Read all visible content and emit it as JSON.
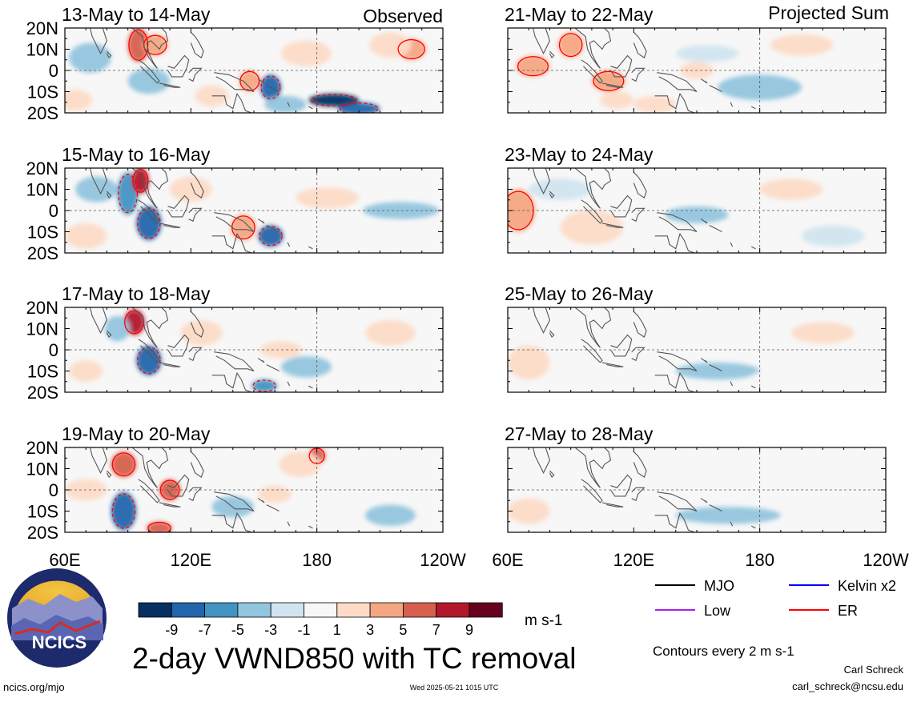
{
  "columns": {
    "left_label": "Observed",
    "right_label": "Projected Sum"
  },
  "chart_data": {
    "type": "heatmap",
    "variable": "2-day VWND850 with TC removal",
    "units": "m s-1",
    "lat_ticks": [
      "20N",
      "10N",
      "0",
      "10S",
      "20S"
    ],
    "lon_ticks": [
      "60E",
      "120E",
      "180",
      "120W"
    ],
    "panels": [
      {
        "label": "13-May to 14-May",
        "column": "Observed",
        "blobs": [
          {
            "lon": 72,
            "lat": 6,
            "value": -4,
            "rx": 10,
            "ry": 7
          },
          {
            "lon": 95,
            "lat": 12,
            "value": 7,
            "rx": 5,
            "ry": 8
          },
          {
            "lon": 103,
            "lat": 12,
            "value": 5,
            "rx": 6,
            "ry": 5
          },
          {
            "lon": 100,
            "lat": -5,
            "value": -3,
            "rx": 10,
            "ry": 6
          },
          {
            "lon": 148,
            "lat": -5,
            "value": 5,
            "rx": 5,
            "ry": 5
          },
          {
            "lon": 158,
            "lat": -8,
            "value": -7,
            "rx": 5,
            "ry": 6
          },
          {
            "lon": 188,
            "lat": -14,
            "value": -9,
            "rx": 12,
            "ry": 3
          },
          {
            "lon": 200,
            "lat": -18,
            "value": -7,
            "rx": 10,
            "ry": 3
          },
          {
            "lon": 225,
            "lat": 10,
            "value": 5,
            "rx": 7,
            "ry": 5
          },
          {
            "lon": 215,
            "lat": 12,
            "value": 3,
            "rx": 10,
            "ry": 6
          },
          {
            "lon": 130,
            "lat": -12,
            "value": 3,
            "rx": 8,
            "ry": 5
          },
          {
            "lon": 175,
            "lat": 8,
            "value": 3,
            "rx": 12,
            "ry": 6
          },
          {
            "lon": 165,
            "lat": -16,
            "value": -3,
            "rx": 10,
            "ry": 4
          },
          {
            "lon": 65,
            "lat": -14,
            "value": 3,
            "rx": 8,
            "ry": 5
          }
        ]
      },
      {
        "label": "15-May to 16-May",
        "column": "Observed",
        "blobs": [
          {
            "lon": 90,
            "lat": 8,
            "value": -5,
            "rx": 5,
            "ry": 10
          },
          {
            "lon": 96,
            "lat": 14,
            "value": 9,
            "rx": 4,
            "ry": 6
          },
          {
            "lon": 100,
            "lat": -6,
            "value": -7,
            "rx": 6,
            "ry": 8
          },
          {
            "lon": 75,
            "lat": 10,
            "value": -3,
            "rx": 10,
            "ry": 6
          },
          {
            "lon": 145,
            "lat": -8,
            "value": 5,
            "rx": 6,
            "ry": 6
          },
          {
            "lon": 158,
            "lat": -12,
            "value": -7,
            "rx": 6,
            "ry": 5
          },
          {
            "lon": 220,
            "lat": 0,
            "value": -3,
            "rx": 18,
            "ry": 4
          },
          {
            "lon": 120,
            "lat": 10,
            "value": 3,
            "rx": 10,
            "ry": 6
          },
          {
            "lon": 70,
            "lat": -12,
            "value": 3,
            "rx": 10,
            "ry": 6
          },
          {
            "lon": 185,
            "lat": 6,
            "value": 3,
            "rx": 15,
            "ry": 5
          }
        ]
      },
      {
        "label": "17-May to 18-May",
        "column": "Observed",
        "blobs": [
          {
            "lon": 93,
            "lat": 13,
            "value": 9,
            "rx": 5,
            "ry": 6
          },
          {
            "lon": 100,
            "lat": -5,
            "value": -7,
            "rx": 6,
            "ry": 7
          },
          {
            "lon": 85,
            "lat": 10,
            "value": -3,
            "rx": 6,
            "ry": 6
          },
          {
            "lon": 163,
            "lat": 0,
            "value": 3,
            "rx": 10,
            "ry": 4
          },
          {
            "lon": 175,
            "lat": -8,
            "value": -3,
            "rx": 12,
            "ry": 5
          },
          {
            "lon": 155,
            "lat": -17,
            "value": -5,
            "rx": 6,
            "ry": 3
          },
          {
            "lon": 215,
            "lat": 8,
            "value": 3,
            "rx": 12,
            "ry": 6
          },
          {
            "lon": 125,
            "lat": 8,
            "value": 3,
            "rx": 10,
            "ry": 6
          },
          {
            "lon": 70,
            "lat": -10,
            "value": 3,
            "rx": 8,
            "ry": 5
          }
        ]
      },
      {
        "label": "19-May to 20-May",
        "column": "Observed",
        "blobs": [
          {
            "lon": 88,
            "lat": 12,
            "value": 7,
            "rx": 6,
            "ry": 6
          },
          {
            "lon": 88,
            "lat": -10,
            "value": -7,
            "rx": 6,
            "ry": 9
          },
          {
            "lon": 110,
            "lat": 0,
            "value": 7,
            "rx": 5,
            "ry": 5
          },
          {
            "lon": 105,
            "lat": -18,
            "value": 7,
            "rx": 6,
            "ry": 3
          },
          {
            "lon": 180,
            "lat": 16,
            "value": 7,
            "rx": 4,
            "ry": 4
          },
          {
            "lon": 172,
            "lat": 12,
            "value": 3,
            "rx": 10,
            "ry": 6
          },
          {
            "lon": 160,
            "lat": -2,
            "value": 3,
            "rx": 8,
            "ry": 4
          },
          {
            "lon": 70,
            "lat": 0,
            "value": 3,
            "rx": 10,
            "ry": 5
          },
          {
            "lon": 140,
            "lat": -8,
            "value": -3,
            "rx": 10,
            "ry": 5
          },
          {
            "lon": 215,
            "lat": -12,
            "value": -3,
            "rx": 12,
            "ry": 5
          }
        ]
      },
      {
        "label": "21-May to 22-May",
        "column": "Projected Sum",
        "blobs": [
          {
            "lon": 90,
            "lat": 12,
            "value": 5,
            "rx": 6,
            "ry": 6
          },
          {
            "lon": 72,
            "lat": 2,
            "value": 5,
            "rx": 8,
            "ry": 5
          },
          {
            "lon": 108,
            "lat": -5,
            "value": 5,
            "rx": 8,
            "ry": 5
          },
          {
            "lon": 112,
            "lat": -14,
            "value": 3,
            "rx": 8,
            "ry": 4
          },
          {
            "lon": 150,
            "lat": 0,
            "value": 3,
            "rx": 8,
            "ry": 4
          },
          {
            "lon": 180,
            "lat": -8,
            "value": -3,
            "rx": 20,
            "ry": 6
          },
          {
            "lon": 155,
            "lat": 8,
            "value": -1,
            "rx": 15,
            "ry": 4
          },
          {
            "lon": 200,
            "lat": 12,
            "value": 3,
            "rx": 15,
            "ry": 5
          },
          {
            "lon": 130,
            "lat": -16,
            "value": 3,
            "rx": 10,
            "ry": 4
          }
        ]
      },
      {
        "label": "23-May to 24-May",
        "column": "Projected Sum",
        "blobs": [
          {
            "lon": 65,
            "lat": 0,
            "value": 5,
            "rx": 8,
            "ry": 10
          },
          {
            "lon": 100,
            "lat": -8,
            "value": 3,
            "rx": 15,
            "ry": 8
          },
          {
            "lon": 85,
            "lat": 10,
            "value": -1,
            "rx": 15,
            "ry": 5
          },
          {
            "lon": 150,
            "lat": -2,
            "value": -3,
            "rx": 15,
            "ry": 4
          },
          {
            "lon": 195,
            "lat": 10,
            "value": 3,
            "rx": 15,
            "ry": 5
          },
          {
            "lon": 160,
            "lat": 14,
            "value": 1,
            "rx": 10,
            "ry": 4
          },
          {
            "lon": 215,
            "lat": -12,
            "value": -1,
            "rx": 15,
            "ry": 5
          }
        ]
      },
      {
        "label": "25-May to 26-May",
        "column": "Projected Sum",
        "blobs": [
          {
            "lon": 70,
            "lat": -6,
            "value": 3,
            "rx": 10,
            "ry": 8
          },
          {
            "lon": 105,
            "lat": 10,
            "value": 1,
            "rx": 12,
            "ry": 5
          },
          {
            "lon": 160,
            "lat": -10,
            "value": -3,
            "rx": 20,
            "ry": 4
          },
          {
            "lon": 210,
            "lat": 8,
            "value": 3,
            "rx": 15,
            "ry": 5
          },
          {
            "lon": 185,
            "lat": -14,
            "value": 1,
            "rx": 10,
            "ry": 4
          }
        ]
      },
      {
        "label": "27-May to 28-May",
        "column": "Projected Sum",
        "blobs": [
          {
            "lon": 70,
            "lat": -10,
            "value": 3,
            "rx": 10,
            "ry": 6
          },
          {
            "lon": 165,
            "lat": -12,
            "value": -3,
            "rx": 25,
            "ry": 4
          },
          {
            "lon": 205,
            "lat": 10,
            "value": 1,
            "rx": 15,
            "ry": 5
          },
          {
            "lon": 100,
            "lat": 14,
            "value": 1,
            "rx": 10,
            "ry": 4
          }
        ]
      }
    ],
    "colorbar": {
      "ticks": [
        "-9",
        "-7",
        "-5",
        "-3",
        "-1",
        "1",
        "3",
        "5",
        "7",
        "9"
      ],
      "colors": [
        "#053061",
        "#2166ac",
        "#4393c3",
        "#92c5de",
        "#d1e5f0",
        "#f7f7f7",
        "#fddbc7",
        "#f4a582",
        "#d6604d",
        "#b2182b",
        "#67001f"
      ]
    },
    "legend": [
      {
        "label": "MJO",
        "color": "#000000"
      },
      {
        "label": "Kelvin x2",
        "color": "#0000ff"
      },
      {
        "label": "Low",
        "color": "#a020f0"
      },
      {
        "label": "ER",
        "color": "#ff0000"
      }
    ],
    "contour_note": "Contours every 2 m s-1"
  },
  "footer": {
    "title": "2-day VWND850 with TC removal",
    "logo_text": "NCICS",
    "website": "ncics.org/mjo",
    "timestamp": "Wed 2025-05-21 1015 UTC",
    "author": "Carl Schreck",
    "email": "carl_schreck@ncsu.edu"
  }
}
